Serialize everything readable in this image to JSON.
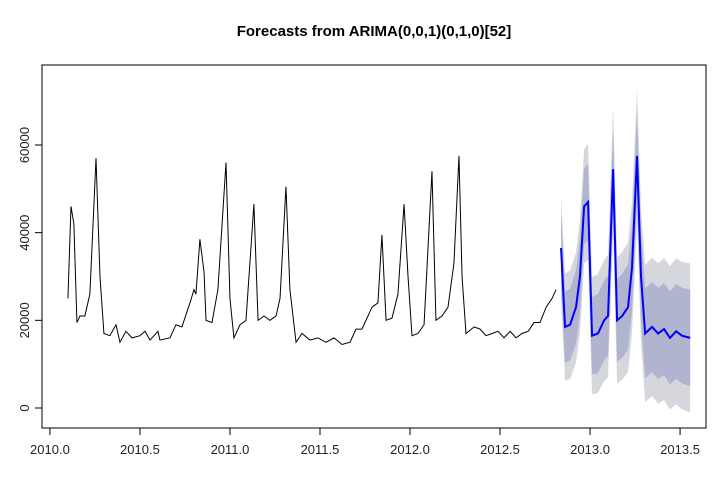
{
  "chart_data": {
    "type": "line",
    "title": "Forecasts from ARIMA(0,0,1)(0,1,0)[52]",
    "xlim": [
      2009.956,
      2013.644
    ],
    "ylim": [
      -4560,
      78250
    ],
    "xticks": [
      {
        "value": 2010,
        "label": "2010.0"
      },
      2010.5,
      {
        "value": 2011,
        "label": "2011.0"
      },
      2011.5,
      {
        "value": 2012,
        "label": "2012.0"
      },
      2012.5,
      {
        "value": 2013,
        "label": "2013.0"
      },
      2013.5
    ],
    "yticks": [
      0,
      20000,
      40000,
      60000
    ],
    "series": [
      {
        "color": "#000000",
        "x": [
          2010.1,
          2010.117,
          2010.133,
          2010.15,
          2010.167,
          2010.194,
          2010.222,
          2010.256,
          2010.278,
          2010.3,
          2010.333,
          2010.367,
          2010.389,
          2010.422,
          2010.456,
          2010.5,
          2010.528,
          2010.556,
          2010.6,
          2010.611,
          2010.667,
          2010.7,
          2010.733,
          2010.778,
          2010.8,
          2010.811,
          2010.833,
          2010.856,
          2010.867,
          2010.9,
          2010.933,
          2010.978,
          2011.0,
          2011.022,
          2011.056,
          2011.089,
          2011.133,
          2011.156,
          2011.189,
          2011.222,
          2011.256,
          2011.278,
          2011.311,
          2011.333,
          2011.367,
          2011.4,
          2011.444,
          2011.489,
          2011.533,
          2011.578,
          2011.622,
          2011.667,
          2011.7,
          2011.733,
          2011.789,
          2011.822,
          2011.844,
          2011.867,
          2011.9,
          2011.933,
          2011.967,
          2011.989,
          2012.011,
          2012.044,
          2012.078,
          2012.122,
          2012.144,
          2012.178,
          2012.211,
          2012.244,
          2012.272,
          2012.289,
          2012.311,
          2012.356,
          2012.389,
          2012.422,
          2012.456,
          2012.489,
          2012.522,
          2012.556,
          2012.589,
          2012.622,
          2012.656,
          2012.689,
          2012.722,
          2012.756,
          2012.789,
          2012.811
        ],
        "values": [
          25000,
          46000,
          42000,
          19500,
          21000,
          21000,
          26000,
          57000,
          30000,
          17000,
          16500,
          19000,
          15000,
          17500,
          16000,
          16500,
          17500,
          15500,
          17500,
          15500,
          16000,
          19000,
          18500,
          24000,
          27000,
          26000,
          38500,
          31000,
          20000,
          19500,
          27000,
          56000,
          25000,
          16000,
          19000,
          20000,
          46500,
          20000,
          21000,
          20000,
          21000,
          25000,
          50500,
          27000,
          15000,
          17000,
          15500,
          16000,
          15000,
          16000,
          14500,
          15000,
          18000,
          18000,
          23000,
          24000,
          39500,
          20000,
          20500,
          26000,
          46500,
          30000,
          16500,
          17000,
          19000,
          54000,
          20000,
          21000,
          23000,
          33000,
          57500,
          30000,
          17000,
          18500,
          18000,
          16500,
          17000,
          17500,
          16000,
          17500,
          16000,
          17000,
          17500,
          19500,
          19500,
          23000,
          25000,
          27000
        ]
      },
      {
        "color": "#0000ff",
        "x": [
          2012.839,
          2012.861,
          2012.889,
          2012.922,
          2012.944,
          2012.967,
          2012.989,
          2013.011,
          2013.044,
          2013.078,
          2013.1,
          2013.128,
          2013.15,
          2013.178,
          2013.211,
          2013.233,
          2013.261,
          2013.283,
          2013.306,
          2013.344,
          2013.378,
          2013.411,
          2013.444,
          2013.478,
          2013.511,
          2013.556
        ],
        "values": [
          36500,
          18500,
          19000,
          23000,
          30000,
          46000,
          47000,
          16500,
          17000,
          20000,
          21000,
          54500,
          20000,
          21000,
          23000,
          32000,
          57500,
          30000,
          17000,
          18500,
          17000,
          18000,
          16000,
          17500,
          16500,
          16000
        ]
      }
    ],
    "intervals": [
      {
        "color": "#d6d6dd",
        "lower": [
          24500,
          6300,
          6600,
          10400,
          17200,
          33000,
          33800,
          3100,
          3400,
          6200,
          7000,
          40300,
          5600,
          6400,
          8200,
          17000,
          42300,
          14600,
          1400,
          2700,
          1000,
          1800,
          -400,
          900,
          -300,
          -1000
        ],
        "upper": [
          48500,
          30700,
          31400,
          35600,
          42800,
          59000,
          60200,
          29900,
          30600,
          33800,
          35000,
          68700,
          34400,
          35600,
          37800,
          47000,
          72700,
          45400,
          32600,
          34300,
          33000,
          34200,
          32400,
          34100,
          33300,
          33000
        ]
      },
      {
        "color": "#b0b4ce",
        "lower": [
          28500,
          10400,
          10800,
          14600,
          21500,
          37400,
          38300,
          7700,
          8000,
          10900,
          11800,
          45200,
          10600,
          11400,
          13300,
          22200,
          47600,
          20000,
          6800,
          8200,
          6600,
          7500,
          5400,
          6700,
          5600,
          5000
        ],
        "upper": [
          44500,
          26600,
          27200,
          31400,
          38500,
          54600,
          55700,
          25300,
          26000,
          29100,
          30200,
          63800,
          29400,
          30600,
          32700,
          41800,
          67400,
          40000,
          27200,
          28800,
          27400,
          28500,
          26600,
          28300,
          27400,
          27000
        ]
      }
    ]
  }
}
